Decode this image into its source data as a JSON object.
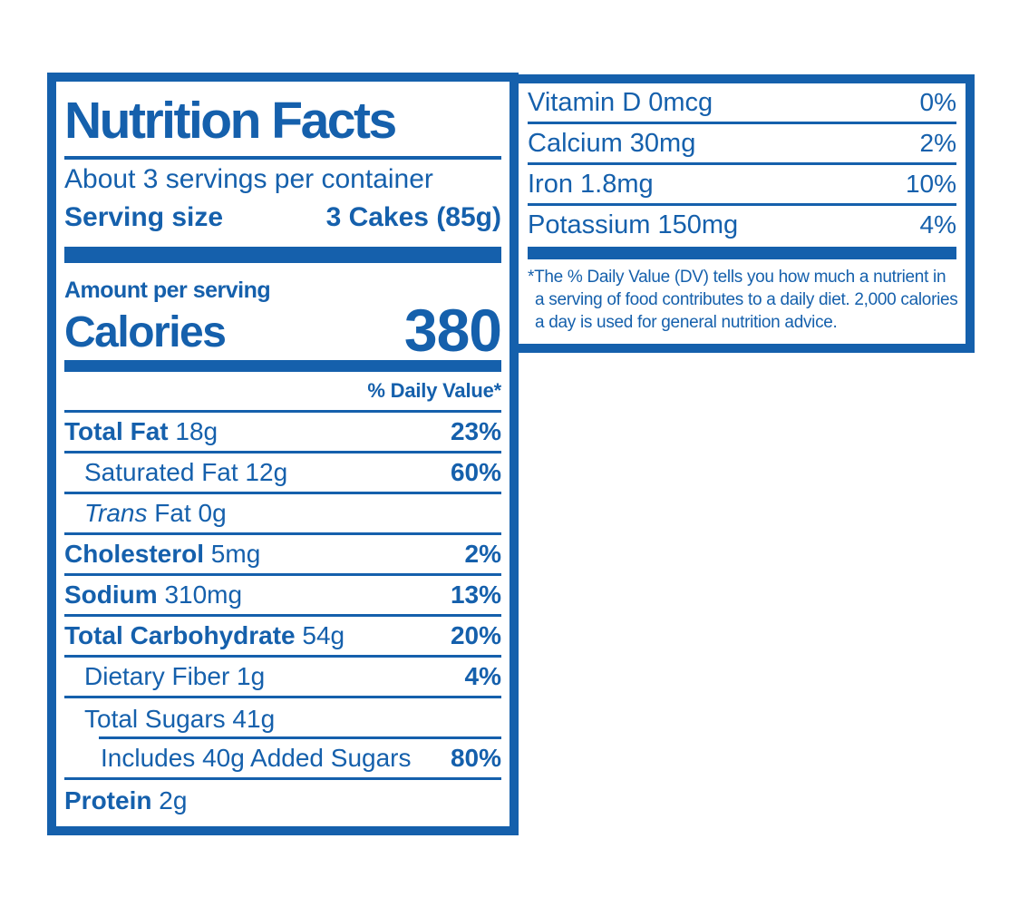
{
  "colors": {
    "brand_blue": "#1560AC",
    "background": "#FFFFFF"
  },
  "main_panel": {
    "title": "Nutrition Facts",
    "servings_per_container": "About 3 servings per container",
    "serving_size_label": "Serving size",
    "serving_size_value": "3 Cakes (85g)",
    "amount_per_serving": "Amount per serving",
    "calories_label": "Calories",
    "calories_value": "380",
    "daily_value_header": "% Daily Value*",
    "nutrients": [
      {
        "parts": [
          {
            "t": "Total Fat",
            "b": 1
          },
          {
            "t": " 18g"
          }
        ],
        "pct": "23%",
        "pct_bold": 1,
        "indent": 0,
        "sep": "full"
      },
      {
        "parts": [
          {
            "t": "Saturated Fat 12g"
          }
        ],
        "pct": "60%",
        "pct_bold": 1,
        "indent": 1,
        "sep": "full"
      },
      {
        "parts": [
          {
            "t": "Trans",
            "i": 1
          },
          {
            "t": " Fat 0g"
          }
        ],
        "pct": "",
        "pct_bold": 0,
        "indent": 1,
        "sep": "full"
      },
      {
        "parts": [
          {
            "t": "Cholesterol",
            "b": 1
          },
          {
            "t": " 5mg"
          }
        ],
        "pct": "2%",
        "pct_bold": 1,
        "indent": 0,
        "sep": "full"
      },
      {
        "parts": [
          {
            "t": "Sodium",
            "b": 1
          },
          {
            "t": " 310mg"
          }
        ],
        "pct": "13%",
        "pct_bold": 1,
        "indent": 0,
        "sep": "full"
      },
      {
        "parts": [
          {
            "t": "Total Carbohydrate",
            "b": 1
          },
          {
            "t": " 54g"
          }
        ],
        "pct": "20%",
        "pct_bold": 1,
        "indent": 0,
        "sep": "full"
      },
      {
        "parts": [
          {
            "t": "Dietary Fiber 1g"
          }
        ],
        "pct": "4%",
        "pct_bold": 1,
        "indent": 1,
        "sep": "full"
      },
      {
        "parts": [
          {
            "t": "Total Sugars 41g"
          }
        ],
        "pct": "",
        "pct_bold": 0,
        "indent": 1,
        "sep": "indent"
      },
      {
        "parts": [
          {
            "t": "Includes 40g Added Sugars"
          }
        ],
        "pct": "80%",
        "pct_bold": 1,
        "indent": 2,
        "sep": "full"
      },
      {
        "parts": [
          {
            "t": "Protein",
            "b": 1
          },
          {
            "t": " 2g"
          }
        ],
        "pct": "",
        "pct_bold": 0,
        "indent": 0,
        "sep": "none"
      }
    ]
  },
  "side_panel": {
    "vitamins": [
      {
        "label": "Vitamin D 0mcg",
        "pct": "0%"
      },
      {
        "label": "Calcium 30mg",
        "pct": "2%"
      },
      {
        "label": "Iron 1.8mg",
        "pct": "10%"
      },
      {
        "label": "Potassium 150mg",
        "pct": "4%"
      }
    ],
    "footnote_lines": [
      "*The % Daily Value (DV) tells you how much a nutrient in",
      "a serving of food contributes to a daily diet. 2,000 calories",
      "a day is used for general nutrition advice."
    ]
  }
}
